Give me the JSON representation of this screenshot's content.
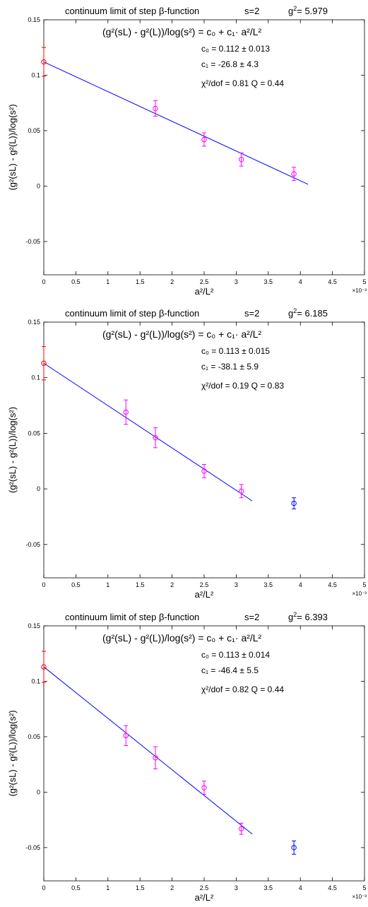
{
  "chart_data": [
    {
      "type": "scatter",
      "title": "continuum limit of step β-function",
      "s_label": "s=2",
      "g2_value": "5.979",
      "xlabel": "a²/L²",
      "ylabel": "(g²(sL) - g²(L))/log(s²)",
      "x_multiplier": "×10⁻³",
      "xlim": [
        0,
        0.005
      ],
      "ylim": [
        -0.08,
        0.15
      ],
      "xticks": [
        0,
        0.0005,
        0.001,
        0.0015,
        0.002,
        0.0025,
        0.003,
        0.0035,
        0.004,
        0.0045,
        0.005
      ],
      "xtick_labels": [
        "0",
        "0.5",
        "1",
        "1.5",
        "2",
        "2.5",
        "3",
        "3.5",
        "4",
        "4.5",
        "5"
      ],
      "yticks": [
        -0.05,
        0,
        0.05,
        0.1,
        0.15
      ],
      "ytick_labels": [
        "-0.05",
        "0",
        "0.05",
        "0.1",
        "0.15"
      ],
      "grid": false,
      "fit": {
        "formula": "(g²(sL) - g²(L))/log(s²) = c₀ + c₁· a²/L²",
        "c0_text": "c₀ = 0.112 ± 0.013",
        "c1_text": "c₁ = -26.8 ± 4.3",
        "chi2_text": "χ²/dof = 0.81 Q = 0.44",
        "c0": 0.112,
        "c1": -26.8,
        "x_range": [
          0,
          0.00412
        ]
      },
      "continuum_point": {
        "x": 0,
        "y": 0.112,
        "err": 0.013
      },
      "series": [
        {
          "x": [
            0.00174,
            0.0025,
            0.00308,
            0.0039
          ],
          "y": [
            0.07,
            0.042,
            0.024,
            0.011
          ],
          "err": [
            0.007,
            0.006,
            0.006,
            0.006
          ]
        }
      ],
      "excluded_points": [],
      "colors": {
        "axis": "#000000",
        "fit_line": "#0000ff",
        "continuum": "#ff0000",
        "fitted_points": "#ff00ff",
        "excluded_points": "#0000ff"
      }
    },
    {
      "type": "scatter",
      "title": "continuum limit of step β-function",
      "s_label": "s=2",
      "g2_value": "6.185",
      "xlabel": "a²/L²",
      "ylabel": "(g²(sL) - g²(L))/log(s²)",
      "x_multiplier": "×10⁻³",
      "xlim": [
        0,
        0.005
      ],
      "ylim": [
        -0.08,
        0.15
      ],
      "xticks": [
        0,
        0.0005,
        0.001,
        0.0015,
        0.002,
        0.0025,
        0.003,
        0.0035,
        0.004,
        0.0045,
        0.005
      ],
      "xtick_labels": [
        "0",
        "0.5",
        "1",
        "1.5",
        "2",
        "2.5",
        "3",
        "3.5",
        "4",
        "4.5",
        "5"
      ],
      "yticks": [
        -0.05,
        0,
        0.05,
        0.1,
        0.15
      ],
      "ytick_labels": [
        "-0.05",
        "0",
        "0.05",
        "0.1",
        "0.15"
      ],
      "grid": false,
      "fit": {
        "formula": "(g²(sL) - g²(L))/log(s²) = c₀ + c₁· a²/L²",
        "c0_text": "c₀ = 0.113 ± 0.015",
        "c1_text": "c₁ = -38.1 ± 5.9",
        "chi2_text": "χ²/dof = 0.19 Q = 0.83",
        "c0": 0.113,
        "c1": -38.1,
        "x_range": [
          0,
          0.00325
        ]
      },
      "continuum_point": {
        "x": 0,
        "y": 0.113,
        "err": 0.015
      },
      "series": [
        {
          "x": [
            0.00128,
            0.00174,
            0.0025,
            0.00308
          ],
          "y": [
            0.069,
            0.046,
            0.016,
            -0.002
          ],
          "err": [
            0.011,
            0.009,
            0.006,
            0.006
          ]
        }
      ],
      "excluded_points": [
        {
          "x": 0.0039,
          "y": -0.013,
          "err": 0.005
        }
      ],
      "colors": {
        "axis": "#000000",
        "fit_line": "#0000ff",
        "continuum": "#ff0000",
        "fitted_points": "#ff00ff",
        "excluded_points": "#0000ff"
      }
    },
    {
      "type": "scatter",
      "title": "continuum limit of step β-function",
      "s_label": "s=2",
      "g2_value": "6.393",
      "xlabel": "a²/L²",
      "ylabel": "(g²(sL) - g²(L))/log(s²)",
      "x_multiplier": "×10⁻³",
      "xlim": [
        0,
        0.005
      ],
      "ylim": [
        -0.08,
        0.15
      ],
      "xticks": [
        0,
        0.0005,
        0.001,
        0.0015,
        0.002,
        0.0025,
        0.003,
        0.0035,
        0.004,
        0.0045,
        0.005
      ],
      "xtick_labels": [
        "0",
        "0.5",
        "1",
        "1.5",
        "2",
        "2.5",
        "3",
        "3.5",
        "4",
        "4.5",
        "5"
      ],
      "yticks": [
        -0.05,
        0,
        0.05,
        0.1,
        0.15
      ],
      "ytick_labels": [
        "-0.05",
        "0",
        "0.05",
        "0.1",
        "0.15"
      ],
      "grid": false,
      "fit": {
        "formula": "(g²(sL) - g²(L))/log(s²) = c₀ + c₁· a²/L²",
        "c0_text": "c₀ = 0.113 ± 0.014",
        "c1_text": "c₁ = -46.4 ± 5.5",
        "chi2_text": "χ²/dof = 0.82 Q = 0.44",
        "c0": 0.113,
        "c1": -46.4,
        "x_range": [
          0,
          0.00325
        ]
      },
      "continuum_point": {
        "x": 0,
        "y": 0.113,
        "err": 0.014
      },
      "series": [
        {
          "x": [
            0.00128,
            0.00174,
            0.0025,
            0.00308
          ],
          "y": [
            0.051,
            0.031,
            0.004,
            -0.033
          ],
          "err": [
            0.009,
            0.01,
            0.006,
            0.005
          ]
        }
      ],
      "excluded_points": [
        {
          "x": 0.0039,
          "y": -0.05,
          "err": 0.006
        }
      ],
      "colors": {
        "axis": "#000000",
        "fit_line": "#0000ff",
        "continuum": "#ff0000",
        "fitted_points": "#ff00ff",
        "excluded_points": "#0000ff"
      }
    }
  ]
}
